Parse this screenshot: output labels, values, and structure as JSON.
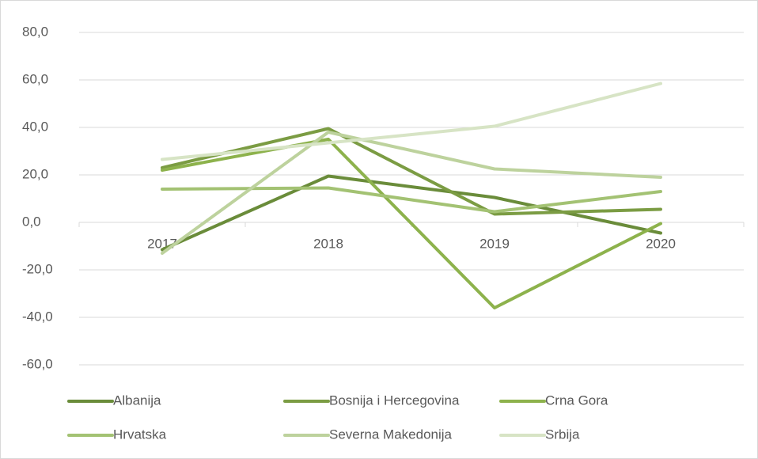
{
  "chart_data": {
    "type": "line",
    "categories": [
      "2017",
      "2018",
      "2019",
      "2020"
    ],
    "series": [
      {
        "name": "Albanija",
        "color": "#6a8c3a",
        "values": [
          -11.5,
          19.5,
          10.5,
          -4.5
        ]
      },
      {
        "name": "Bosnija i Hercegovina",
        "color": "#7b9c43",
        "values": [
          23,
          39.5,
          3.5,
          5.5
        ]
      },
      {
        "name": "Crna Gora",
        "color": "#8db24c",
        "values": [
          22,
          35,
          -36,
          -0.5
        ]
      },
      {
        "name": "Hrvatska",
        "color": "#a3c273",
        "values": [
          14,
          14.5,
          4.5,
          13
        ]
      },
      {
        "name": "Severna Makedonija",
        "color": "#bdd29d",
        "values": [
          -13,
          38,
          22.5,
          19
        ]
      },
      {
        "name": "Srbija",
        "color": "#d7e4c5",
        "values": [
          26.5,
          33.5,
          40.5,
          58.5
        ]
      }
    ],
    "ylim": [
      -60,
      80
    ],
    "yticks": [
      {
        "value": -60,
        "label": "-60,0"
      },
      {
        "value": -40,
        "label": "-40,0"
      },
      {
        "value": -20,
        "label": "-20,0"
      },
      {
        "value": 0,
        "label": "0,0"
      },
      {
        "value": 20,
        "label": "20,0"
      },
      {
        "value": 40,
        "label": "40,0"
      },
      {
        "value": 60,
        "label": "60,0"
      },
      {
        "value": 80,
        "label": "80,0"
      }
    ],
    "grid": true
  }
}
